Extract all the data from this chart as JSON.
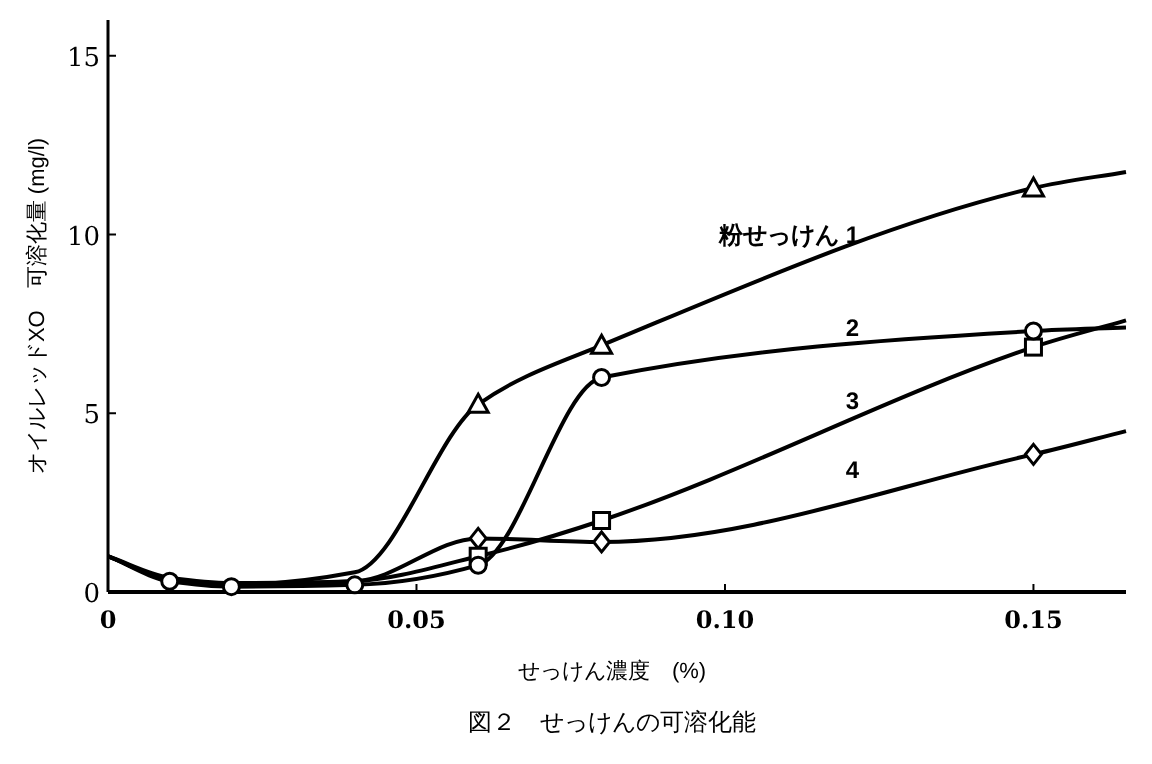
{
  "chart_data": {
    "type": "line",
    "xlabel": "せっけん濃度　(%)",
    "ylabel": "オイルレッドXO　可溶化量 (mg/l)",
    "xlim": [
      0,
      0.165
    ],
    "ylim": [
      0,
      16
    ],
    "xticks": [
      0,
      0.05,
      {
        "value": 0.1,
        "label": "0.10"
      },
      0.15
    ],
    "yticks": [
      0,
      5,
      10,
      15
    ],
    "grid": false,
    "series": [
      {
        "name": "粉せっけん 1",
        "type": "line",
        "color": "#000000",
        "marker": "none",
        "x": [
          0,
          0.01,
          0.02,
          0.04,
          0.06,
          0.08,
          0.15,
          0.165
        ],
        "values": [
          1.0,
          0.35,
          0.2,
          0.55,
          5.25,
          6.9,
          11.3,
          11.75
        ]
      },
      {
        "name": "2",
        "type": "line",
        "color": "#000000",
        "marker": "none",
        "x": [
          0,
          0.01,
          0.02,
          0.04,
          0.06,
          0.08,
          0.15,
          0.165
        ],
        "values": [
          1.0,
          0.3,
          0.15,
          0.2,
          0.75,
          6.0,
          7.3,
          7.4
        ]
      },
      {
        "name": "3",
        "type": "line",
        "color": "#000000",
        "marker": "none",
        "x": [
          0,
          0.01,
          0.02,
          0.04,
          0.06,
          0.08,
          0.15,
          0.165
        ],
        "values": [
          1.0,
          0.35,
          0.2,
          0.3,
          1.0,
          2.0,
          6.85,
          7.6
        ]
      },
      {
        "name": "4",
        "type": "line",
        "color": "#000000",
        "marker": "none",
        "x": [
          0,
          0.01,
          0.02,
          0.04,
          0.06,
          0.08,
          0.15,
          0.165
        ],
        "values": [
          1.0,
          0.4,
          0.25,
          0.3,
          1.5,
          1.4,
          3.85,
          4.5
        ]
      },
      {
        "type": "scatter",
        "color": "#000000",
        "marker": "triangle",
        "x": [
          0.06,
          0.08,
          0.15
        ],
        "values": [
          5.25,
          6.9,
          11.3
        ]
      },
      {
        "type": "scatter",
        "color": "#000000",
        "marker": "circle",
        "x": [
          0.01,
          0.02,
          0.04,
          0.06,
          0.08,
          0.15
        ],
        "values": [
          0.3,
          0.15,
          0.2,
          0.75,
          6.0,
          7.3
        ]
      },
      {
        "type": "scatter",
        "color": "#000000",
        "marker": "square",
        "x": [
          0.06,
          0.08,
          0.15
        ],
        "values": [
          1.0,
          2.0,
          6.85
        ]
      },
      {
        "type": "scatter",
        "color": "#000000",
        "marker": "diamond",
        "x": [
          0.06,
          0.08,
          0.15
        ],
        "values": [
          1.5,
          1.4,
          3.85
        ]
      }
    ],
    "annotations": [
      "図２　せっけんの可溶化能"
    ]
  }
}
